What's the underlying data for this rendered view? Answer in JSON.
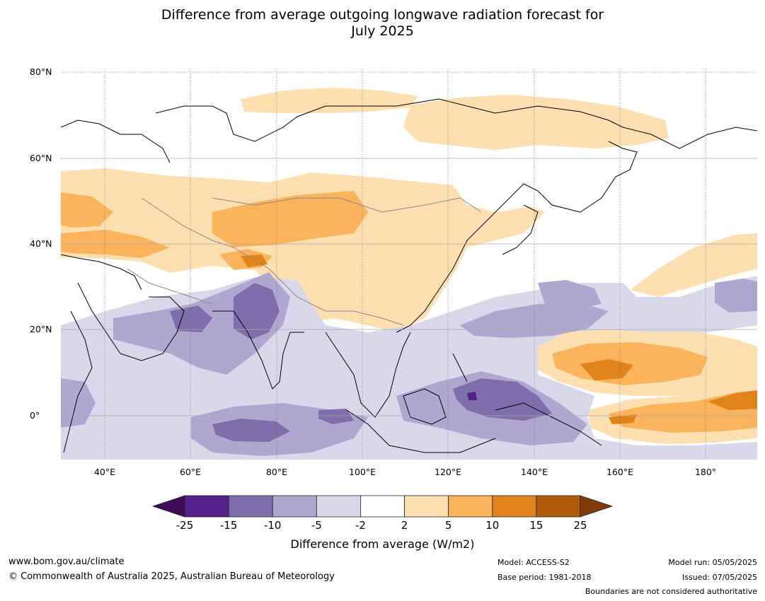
{
  "title_line1": "Difference from average outgoing longwave radiation forecast for",
  "title_line2": "July 2025",
  "lat_labels": [
    "80°N",
    "60°N",
    "40°N",
    "20°N",
    "0°"
  ],
  "lon_labels": [
    "40°E",
    "60°E",
    "80°E",
    "100°E",
    "120°E",
    "140°E",
    "160°E",
    "180°"
  ],
  "colorbar": {
    "ticks": [
      "-25",
      "-15",
      "-10",
      "-5",
      "-2",
      "2",
      "5",
      "10",
      "15",
      "25"
    ],
    "colors": [
      "#3f0d57",
      "#55208a",
      "#7e6eab",
      "#afa7d0",
      "#d9d8ea",
      "#ffffff",
      "#fedfb0",
      "#fbb35c",
      "#e0831a",
      "#b05a0c",
      "#7f3b08"
    ],
    "label": "Difference from average (W/m2)"
  },
  "footer": {
    "website": "www.bom.gov.au/climate",
    "copyright": "© Commonwealth of Australia 2025, Australian Bureau of Meteorology",
    "model": "Model: ACCESS-S2",
    "base_period": "Base period: 1981-2018",
    "model_run": "Model run: 05/05/2025",
    "issued": "Issued: 07/05/2025",
    "disclaimer": "Boundaries are not considered authoritative"
  }
}
